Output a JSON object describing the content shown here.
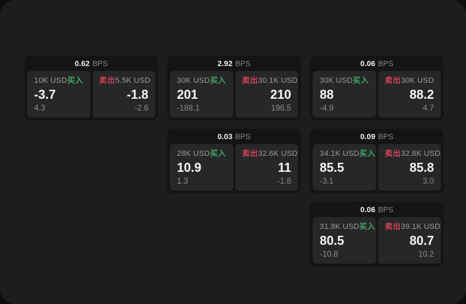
{
  "labels": {
    "bps_unit": "BPS",
    "buy": "买入",
    "sell": "卖出"
  },
  "colors": {
    "buy_green": "#42a56b",
    "sell_red": "#cd4457",
    "panel_bg": "#1d1d1e",
    "card_bg": "#141414",
    "tile_bg": "#272728"
  },
  "cards": [
    {
      "col": 1,
      "row": 1,
      "bps": "0.62",
      "buy": {
        "size": "10K USD",
        "value": "-3.7",
        "sub": "4.3"
      },
      "sell": {
        "size": "5.5K USD",
        "value": "-1.8",
        "sub": "-2.6"
      }
    },
    {
      "col": 2,
      "row": 1,
      "bps": "2.92",
      "buy": {
        "size": "30K USD",
        "value": "201",
        "sub": "-188.1"
      },
      "sell": {
        "size": "30.1K USD",
        "value": "210",
        "sub": "196.5"
      }
    },
    {
      "col": 3,
      "row": 1,
      "bps": "0.06",
      "buy": {
        "size": "30K USD",
        "value": "88",
        "sub": "-4.9"
      },
      "sell": {
        "size": "30K USD",
        "value": "88.2",
        "sub": "4.7"
      }
    },
    {
      "col": 2,
      "row": 2,
      "bps": "0.03",
      "buy": {
        "size": "28K USD",
        "value": "10.9",
        "sub": "1.3"
      },
      "sell": {
        "size": "32.6K USD",
        "value": "11",
        "sub": "-1.8"
      }
    },
    {
      "col": 3,
      "row": 2,
      "bps": "0.09",
      "buy": {
        "size": "34.1K USD",
        "value": "85.5",
        "sub": "-3.1"
      },
      "sell": {
        "size": "32.8K USD",
        "value": "85.8",
        "sub": "3.0"
      }
    },
    {
      "col": 3,
      "row": 3,
      "bps": "0.06",
      "buy": {
        "size": "31.8K USD",
        "value": "80.5",
        "sub": "-10.8"
      },
      "sell": {
        "size": "39.1K USD",
        "value": "80.7",
        "sub": "10.2"
      }
    }
  ]
}
